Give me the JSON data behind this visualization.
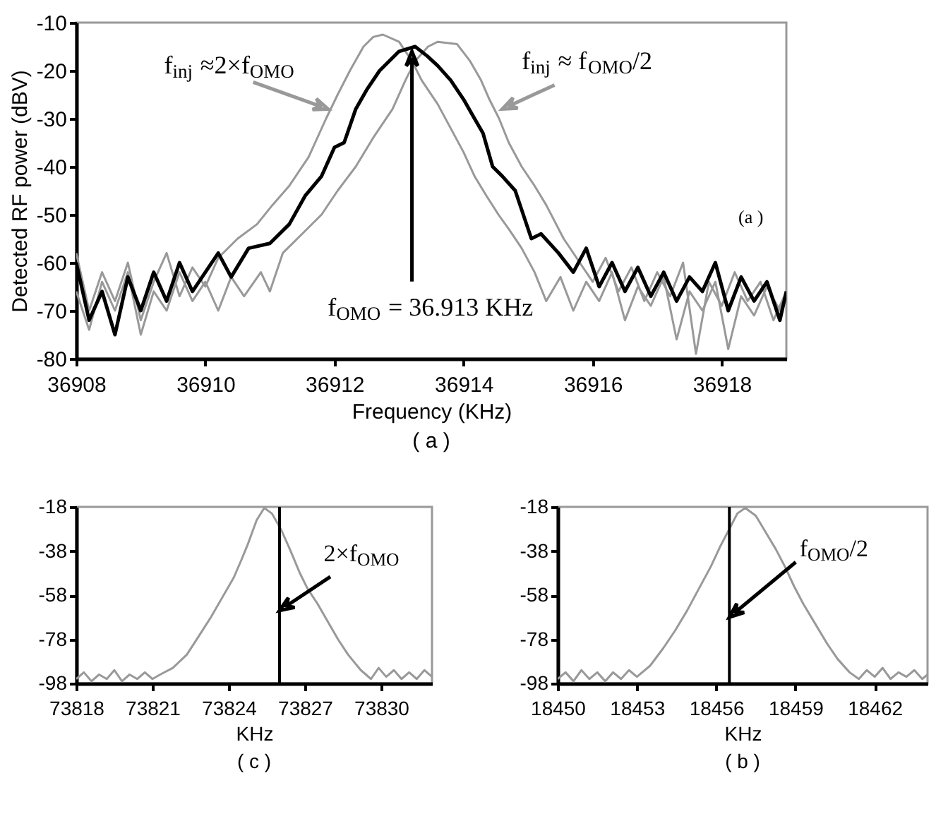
{
  "chart_data": [
    {
      "type": "line",
      "title": "( a )",
      "xlabel": "Frequency (KHz)",
      "ylabel": "Detected RF power (dBV)",
      "xlim": [
        36908,
        36919
      ],
      "xticks": [
        36908,
        36910,
        36912,
        36914,
        36916,
        36918
      ],
      "ylim": [
        -80,
        -10
      ],
      "yticks": [
        -80,
        -70,
        -60,
        -50,
        -40,
        -30,
        -20,
        -10
      ],
      "annotations": [
        {
          "text": "f$_{inj}$ ≈2×f$_{OMO}$",
          "x": 36911.9,
          "y": -28
        },
        {
          "text": "f$_{inj}$ ≈ f$_{OMO}$/2",
          "x": 36914.6,
          "y": -28
        },
        {
          "text": "f$_{OMO}$ = 36.913 KHz",
          "x": 36913.2,
          "y": -16
        },
        "(a )"
      ],
      "series": [
        {
          "color": "#999999",
          "x": [
            36908.0,
            36908.2,
            36908.4,
            36908.6,
            36908.8,
            36909.0,
            36909.2,
            36909.4,
            36909.6,
            36909.8,
            36910.0,
            36910.2,
            36910.5,
            36910.8,
            36911.04,
            36911.3,
            36911.6,
            36911.87,
            36912.05,
            36912.24,
            36912.45,
            36912.6,
            36912.75,
            36913.0,
            36913.2,
            36913.35,
            36913.6,
            36913.8,
            36914.0,
            36914.17,
            36914.35,
            36914.54,
            36914.7,
            36914.9,
            36915.1,
            36915.28,
            36915.5,
            36915.7,
            36915.9,
            36916.1,
            36916.3,
            36916.5,
            36916.7,
            36916.9,
            36917.1,
            36917.3,
            36917.5,
            36917.7,
            36917.9,
            36918.1,
            36918.3,
            36918.5,
            36918.7,
            36918.9,
            36919.0
          ],
          "values": [
            -58,
            -70,
            -62,
            -68,
            -60,
            -72,
            -64,
            -58,
            -67,
            -61,
            -65,
            -59,
            -55,
            -52,
            -48,
            -44,
            -38,
            -30,
            -25,
            -20,
            -15,
            -13,
            -12.5,
            -14,
            -18,
            -22,
            -27,
            -32,
            -37,
            -42,
            -46,
            -50,
            -53,
            -57,
            -62,
            -68,
            -63,
            -70,
            -64,
            -68,
            -62,
            -72,
            -65,
            -69,
            -63,
            -76,
            -66,
            -70,
            -64,
            -78,
            -67,
            -71,
            -65,
            -70,
            -67
          ]
        },
        {
          "color": "#999999",
          "x": [
            36908.0,
            36908.2,
            36908.4,
            36908.6,
            36908.8,
            36909.0,
            36909.2,
            36909.4,
            36909.6,
            36909.8,
            36910.0,
            36910.2,
            36910.4,
            36910.6,
            36910.86,
            36911.0,
            36911.2,
            36911.5,
            36911.8,
            36912.05,
            36912.33,
            36912.6,
            36912.9,
            36913.1,
            36913.25,
            36913.45,
            36913.6,
            36913.9,
            36914.1,
            36914.27,
            36914.4,
            36914.55,
            36914.7,
            36914.9,
            36915.1,
            36915.28,
            36915.55,
            36915.8,
            36916.0,
            36916.2,
            36916.4,
            36916.6,
            36916.8,
            36917.0,
            36917.2,
            36917.4,
            36917.6,
            36917.8,
            36918.0,
            36918.2,
            36918.4,
            36918.6,
            36918.8,
            36919.0
          ],
          "values": [
            -66,
            -74,
            -64,
            -70,
            -62,
            -75,
            -66,
            -70,
            -62,
            -68,
            -64,
            -70,
            -63,
            -67,
            -62,
            -66,
            -58,
            -54,
            -50,
            -45,
            -40,
            -34,
            -28,
            -22,
            -18,
            -15,
            -14,
            -14.5,
            -18,
            -22,
            -26,
            -30,
            -35,
            -40,
            -44,
            -48,
            -55,
            -60,
            -64,
            -59,
            -66,
            -61,
            -68,
            -62,
            -67,
            -60,
            -79,
            -64,
            -69,
            -62,
            -68,
            -64,
            -72,
            -66
          ]
        },
        {
          "color": "#000000",
          "x": [
            36908.0,
            36908.2,
            36908.4,
            36908.6,
            36908.8,
            36909.0,
            36909.2,
            36909.4,
            36909.6,
            36909.8,
            36910.0,
            36910.2,
            36910.4,
            36910.67,
            36911.0,
            36911.3,
            36911.55,
            36911.8,
            36912.0,
            36912.15,
            36912.33,
            36912.5,
            36912.7,
            36913.0,
            36913.25,
            36913.44,
            36913.6,
            36913.8,
            36914.0,
            36914.17,
            36914.3,
            36914.45,
            36914.6,
            36914.8,
            36915.05,
            36915.2,
            36915.47,
            36915.7,
            36915.9,
            36916.1,
            36916.3,
            36916.5,
            36916.7,
            36916.9,
            36917.1,
            36917.3,
            36917.5,
            36917.7,
            36917.9,
            36918.1,
            36918.3,
            36918.5,
            36918.7,
            36918.9,
            36919.0
          ],
          "values": [
            -60,
            -72,
            -66,
            -75,
            -63,
            -70,
            -62,
            -68,
            -60,
            -66,
            -62,
            -58,
            -63,
            -57,
            -56,
            -52,
            -46,
            -42,
            -36,
            -35,
            -28,
            -24,
            -20,
            -16,
            -15,
            -17,
            -19,
            -22,
            -26,
            -30,
            -33,
            -40,
            -42,
            -45,
            -55,
            -54,
            -58,
            -62,
            -57,
            -65,
            -60,
            -66,
            -61,
            -67,
            -62,
            -68,
            -63,
            -66,
            -60,
            -70,
            -63,
            -68,
            -64,
            -72,
            -66
          ]
        }
      ]
    },
    {
      "type": "line",
      "title": "( c )",
      "xlabel": "KHz",
      "xlim": [
        73818,
        73832
      ],
      "xticks": [
        73818,
        73821,
        73824,
        73827,
        73830
      ],
      "ylim": [
        -98,
        -18
      ],
      "yticks": [
        -98,
        -78,
        -58,
        -38,
        -18
      ],
      "ref_lines": [
        {
          "axis": "x",
          "value": 73826,
          "color": "#000000"
        }
      ],
      "annotations": [
        {
          "text": "2×f$_{OMO}$",
          "x": 73826,
          "y": -65
        }
      ],
      "series": [
        {
          "color": "#999999",
          "x": [
            73818.0,
            73818.3,
            73818.6,
            73818.9,
            73819.2,
            73819.5,
            73819.8,
            73820.1,
            73820.4,
            73820.7,
            73821.0,
            73821.3,
            73821.8,
            73822.35,
            73822.8,
            73823.3,
            73823.75,
            73824.2,
            73824.5,
            73824.75,
            73825.1,
            73825.4,
            73825.7,
            73826.05,
            73826.4,
            73826.8,
            73827.1,
            73827.5,
            73827.9,
            73828.3,
            73828.7,
            73829.2,
            73829.6,
            73829.9,
            73830.2,
            73830.5,
            73830.8,
            73831.1,
            73831.4,
            73831.7,
            73832.0
          ],
          "values": [
            -96,
            -93,
            -97,
            -94,
            -96,
            -92,
            -97,
            -94,
            -96,
            -93,
            -96,
            -94,
            -91,
            -85,
            -77,
            -68,
            -59,
            -50,
            -42,
            -35,
            -24,
            -18.5,
            -21,
            -28,
            -37,
            -48,
            -55,
            -62,
            -70,
            -78,
            -85,
            -92,
            -96,
            -91,
            -95,
            -92,
            -96,
            -93,
            -96,
            -92,
            -95
          ]
        }
      ]
    },
    {
      "type": "line",
      "title": "( b )",
      "xlabel": "KHz",
      "xlim": [
        18450,
        18464
      ],
      "xticks": [
        18450,
        18453,
        18456,
        18459,
        18462
      ],
      "ylim": [
        -98,
        -18
      ],
      "yticks": [
        -98,
        -78,
        -58,
        -38,
        -18
      ],
      "ref_lines": [
        {
          "axis": "x",
          "value": 18456.5,
          "color": "#000000"
        }
      ],
      "annotations": [
        {
          "text": "f$_{OMO}$/2",
          "x": 18456.5,
          "y": -68
        }
      ],
      "series": [
        {
          "color": "#999999",
          "x": [
            18450.0,
            18450.3,
            18450.6,
            18450.9,
            18451.2,
            18451.5,
            18451.8,
            18452.1,
            18452.4,
            18452.7,
            18453.0,
            18453.5,
            18454.0,
            18454.45,
            18454.9,
            18455.35,
            18455.8,
            18456.15,
            18456.5,
            18456.8,
            18457.1,
            18457.5,
            18457.9,
            18458.25,
            18458.6,
            18458.95,
            18459.3,
            18459.75,
            18460.2,
            18460.6,
            18461.05,
            18461.4,
            18461.7,
            18462.0,
            18462.3,
            18462.6,
            18462.9,
            18463.2,
            18463.5,
            18463.8,
            18464.0
          ],
          "values": [
            -96,
            -93,
            -97,
            -92,
            -96,
            -93,
            -97,
            -93,
            -96,
            -92,
            -95,
            -90,
            -82,
            -74,
            -65,
            -55,
            -45,
            -36,
            -28,
            -21,
            -18.5,
            -22,
            -30,
            -37,
            -45,
            -54,
            -62,
            -71,
            -80,
            -87,
            -93,
            -96,
            -92,
            -95,
            -91,
            -96,
            -93,
            -95,
            -92,
            -96,
            -94
          ]
        }
      ]
    }
  ]
}
